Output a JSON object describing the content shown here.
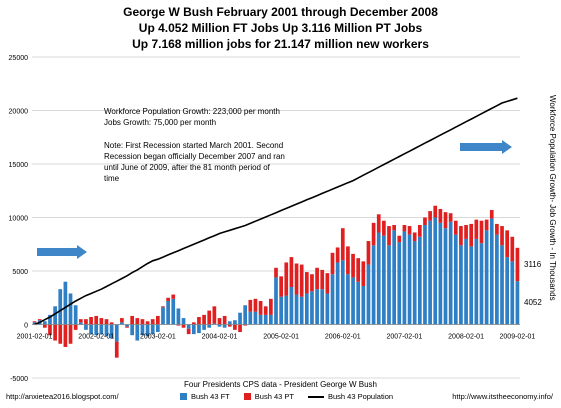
{
  "title": {
    "line1": "George W Bush February 2001 through December 2008",
    "line2": "Up 4.052 Million FT Jobs Up 3.116 Million PT Jobs",
    "line3": "Up 7.168 million jobs for 21.147 million new workers"
  },
  "annotations": {
    "growth1": "Workforce Population Growth: 223,000 per month",
    "growth2": "Jobs Growth:  75,000 per month",
    "note1": "Note: First Recession started March 2001. Second",
    "note2": "Recession began officially December 2007 and ran",
    "note3": "until June of 2009, after the 81 month period of",
    "note4": "time",
    "end_pt": "3116",
    "end_ft": "4052"
  },
  "right_axis_label": "Workforce Population Growth- Job Growth - In Thousands",
  "footer": {
    "subtitle": "Four Presidents CPS data - President George W Bush",
    "left_url": "http://anxietea2016.blogspot.com/",
    "right_url": "http://www.itstheeconomy.info/"
  },
  "colors": {
    "ft": "#2e7fc4",
    "pt": "#e02020",
    "pop": "#000000",
    "arrow": "#3f86c8"
  },
  "chart_data": {
    "type": "bar",
    "title": "George W Bush February 2001 through December 2008",
    "ylabel": "Workforce Population Growth- Job Growth - In Thousands",
    "ylim": [
      -5000,
      25000
    ],
    "yticks": [
      -5000,
      0,
      5000,
      10000,
      15000,
      20000,
      25000
    ],
    "xtick_labels": [
      "2001-02-01",
      "2002-02-01",
      "2003-02-01",
      "2004-02-01",
      "2005-02-01",
      "2006-02-01",
      "2007-02-01",
      "2008-02-01",
      "2009-02-01"
    ],
    "x_start": "2001-02",
    "months": 95,
    "grid": "horizontal",
    "legend_position": "bottom",
    "series": [
      {
        "name": "Bush 43 FT",
        "kind": "bar",
        "values": [
          200,
          400,
          300,
          900,
          1700,
          3300,
          4000,
          2900,
          1800,
          200,
          -500,
          -900,
          -1000,
          -900,
          -1100,
          -1300,
          -1600,
          200,
          -200,
          -1000,
          -1500,
          -1000,
          -1100,
          -900,
          -700,
          1600,
          2200,
          2400,
          1500,
          600,
          -400,
          -900,
          -800,
          -500,
          -300,
          100,
          -200,
          -300,
          300,
          400,
          1100,
          1800,
          1200,
          1200,
          900,
          900,
          900,
          4400,
          2600,
          2700,
          3500,
          2800,
          2600,
          2900,
          3100,
          3300,
          3300,
          2900,
          4700,
          5800,
          6000,
          4700,
          4400,
          4000,
          3600,
          5600,
          7400,
          8600,
          8300,
          7400,
          8800,
          7700,
          8700,
          8400,
          7800,
          8200,
          9300,
          9700,
          10000,
          9500,
          9000,
          9600,
          8400,
          7400,
          8000,
          7300,
          8000,
          7600,
          8800,
          9900,
          8400,
          7400,
          6300,
          5900,
          4052
        ]
      },
      {
        "name": "Bush 43 PT",
        "kind": "bar",
        "values": [
          100,
          100,
          -300,
          -1000,
          -1500,
          -1800,
          -2100,
          -1800,
          -500,
          300,
          500,
          700,
          800,
          600,
          500,
          200,
          -1500,
          400,
          -100,
          800,
          600,
          500,
          300,
          500,
          800,
          100,
          300,
          400,
          -100,
          -300,
          -500,
          200,
          700,
          900,
          1300,
          1600,
          600,
          800,
          -200,
          -500,
          -700,
          -100,
          1100,
          1200,
          1300,
          800,
          1500,
          900,
          1900,
          3100,
          2800,
          2900,
          3000,
          2000,
          1600,
          2000,
          1800,
          1900,
          2000,
          1400,
          3000,
          2600,
          2200,
          2200,
          2300,
          2200,
          2100,
          1700,
          1400,
          1800,
          500,
          600,
          600,
          800,
          800,
          1100,
          700,
          900,
          1100,
          1300,
          1500,
          800,
          1300,
          1800,
          1300,
          2100,
          1800,
          2100,
          1000,
          800,
          1000,
          1800,
          2500,
          2300,
          3116
        ]
      },
      {
        "name": "Bush 43 Population",
        "kind": "line",
        "values": [
          0,
          200,
          450,
          700,
          1000,
          1300,
          1600,
          1900,
          2200,
          2450,
          2700,
          2900,
          3100,
          3300,
          3550,
          3800,
          4050,
          4300,
          4550,
          4850,
          5100,
          5400,
          5700,
          5950,
          6100,
          6300,
          6500,
          6700,
          6900,
          7100,
          7300,
          7500,
          7700,
          7900,
          8100,
          8300,
          8500,
          8650,
          8800,
          8950,
          9100,
          9250,
          9450,
          9650,
          9850,
          10050,
          10250,
          10450,
          10650,
          10850,
          11050,
          11250,
          11450,
          11650,
          11850,
          12050,
          12250,
          12450,
          12650,
          12850,
          13050,
          13250,
          13450,
          13700,
          13950,
          14200,
          14450,
          14700,
          14950,
          15200,
          15450,
          15700,
          15950,
          16200,
          16450,
          16700,
          16950,
          17200,
          17450,
          17700,
          17950,
          18200,
          18450,
          18700,
          18950,
          19200,
          19450,
          19700,
          19950,
          20200,
          20450,
          20700,
          20850,
          21000,
          21147
        ]
      }
    ]
  }
}
